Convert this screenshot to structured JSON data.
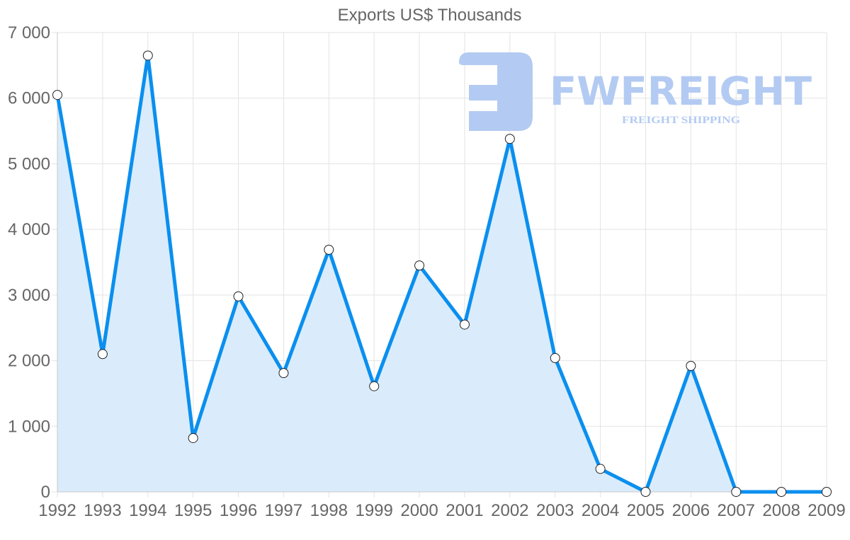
{
  "chart_data": {
    "type": "area",
    "title": "Exports US$ Thousands",
    "xlabel": "",
    "ylabel": "",
    "categories": [
      "1992",
      "1993",
      "1994",
      "1995",
      "1996",
      "1997",
      "1998",
      "1999",
      "2000",
      "2001",
      "2002",
      "2003",
      "2004",
      "2005",
      "2006",
      "2007",
      "2008",
      "2009"
    ],
    "series": [
      {
        "name": "Exports US$ Thousands",
        "values": [
          6050,
          2100,
          6650,
          820,
          2980,
          1810,
          3690,
          1610,
          3450,
          2550,
          5380,
          2040,
          350,
          0,
          1920,
          0,
          0,
          0
        ],
        "line_color": "#0a8fef",
        "fill_color": "#d8ebfb",
        "marker": "hollow-circle"
      }
    ],
    "ylim": [
      0,
      7000
    ],
    "yticks": [
      0,
      1000,
      2000,
      3000,
      4000,
      5000,
      6000,
      7000
    ],
    "ytick_labels": [
      "0",
      "1 000",
      "2 000",
      "3 000",
      "4 000",
      "5 000",
      "6 000",
      "7 000"
    ],
    "grid": true,
    "legend": "none"
  },
  "watermark": {
    "brand": "FWFREIGHT",
    "tagline": "FREIGHT SHIPPING",
    "color": "#b3cbf2"
  }
}
